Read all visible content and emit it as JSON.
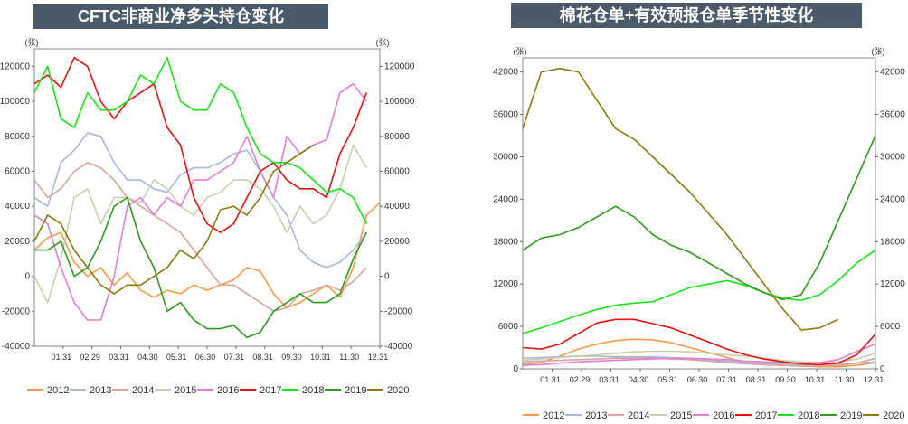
{
  "chart_data": [
    {
      "type": "line",
      "title": "CFTC非商业净多头持仓变化",
      "unit_left": "(张)",
      "unit_right": "(张)",
      "ylim": [
        -40000,
        130000
      ],
      "y_ticks": [
        "-40000",
        "-20000",
        "0",
        "20000",
        "40000",
        "60000",
        "80000",
        "100000",
        "120000"
      ],
      "x_ticks": [
        "01.31",
        "02.29",
        "03.31",
        "04.30",
        "05.31",
        "06.30",
        "07.31",
        "08.31",
        "09.30",
        "10.31",
        "11.30",
        "12.31"
      ],
      "x_start": "01.01",
      "x_end": "12.31",
      "grid": false,
      "legend_position": "bottom",
      "series": [
        {
          "name": "2012",
          "color": "#f59a4a",
          "values": [
            15000,
            22000,
            25000,
            8000,
            0,
            5000,
            -5000,
            2000,
            -8000,
            -12000,
            -8000,
            -10000,
            -5000,
            -8000,
            -5000,
            -2000,
            5000,
            3000,
            -10000,
            -18000,
            -15000,
            -10000,
            -5000,
            -12000,
            5000,
            35000,
            42000
          ]
        },
        {
          "name": "2013",
          "color": "#a9b7d9",
          "values": [
            45000,
            40000,
            65000,
            72000,
            82000,
            80000,
            65000,
            55000,
            55000,
            50000,
            48000,
            58000,
            62000,
            62000,
            65000,
            70000,
            72000,
            60000,
            45000,
            35000,
            15000,
            8000,
            5000,
            8000,
            15000,
            25000
          ]
        },
        {
          "name": "2014",
          "color": "#d9a59c",
          "values": [
            55000,
            45000,
            50000,
            60000,
            65000,
            62000,
            55000,
            45000,
            40000,
            35000,
            30000,
            25000,
            15000,
            5000,
            -5000,
            -5000,
            -10000,
            -15000,
            -20000,
            -18000,
            -10000,
            -8000,
            -5000,
            -8000,
            -3000,
            5000
          ]
        },
        {
          "name": "2015",
          "color": "#c8cfb0",
          "values": [
            0,
            -15000,
            10000,
            45000,
            50000,
            30000,
            45000,
            45000,
            42000,
            55000,
            50000,
            40000,
            35000,
            45000,
            48000,
            55000,
            55000,
            50000,
            40000,
            25000,
            40000,
            30000,
            35000,
            50000,
            75000,
            62000
          ]
        },
        {
          "name": "2016",
          "color": "#e07fd4",
          "values": [
            35000,
            30000,
            5000,
            -15000,
            -25000,
            -25000,
            0,
            40000,
            45000,
            35000,
            45000,
            40000,
            55000,
            55000,
            60000,
            65000,
            80000,
            60000,
            45000,
            80000,
            70000,
            75000,
            78000,
            105000,
            110000,
            100000
          ]
        },
        {
          "name": "2017",
          "color": "#e81010",
          "values": [
            110000,
            115000,
            108000,
            125000,
            120000,
            100000,
            90000,
            100000,
            105000,
            110000,
            85000,
            75000,
            45000,
            30000,
            25000,
            30000,
            45000,
            60000,
            65000,
            55000,
            50000,
            50000,
            45000,
            70000,
            85000,
            105000
          ]
        },
        {
          "name": "2018",
          "color": "#19e619",
          "values": [
            105000,
            120000,
            90000,
            85000,
            105000,
            95000,
            95000,
            100000,
            115000,
            110000,
            125000,
            100000,
            95000,
            95000,
            110000,
            105000,
            85000,
            70000,
            65000,
            65000,
            62000,
            55000,
            48000,
            50000,
            45000,
            30000
          ]
        },
        {
          "name": "2019",
          "color": "#2e9a1e",
          "values": [
            15000,
            15000,
            20000,
            0,
            5000,
            20000,
            40000,
            45000,
            20000,
            5000,
            -20000,
            -15000,
            -25000,
            -30000,
            -30000,
            -28000,
            -35000,
            -32000,
            -20000,
            -15000,
            -10000,
            -15000,
            -15000,
            -10000,
            10000,
            25000
          ]
        },
        {
          "name": "2020",
          "color": "#8c7a10",
          "values": [
            20000,
            35000,
            30000,
            15000,
            5000,
            -5000,
            -10000,
            -5000,
            -5000,
            0,
            5000,
            15000,
            10000,
            20000,
            38000,
            40000,
            35000,
            45000,
            60000,
            65000,
            70000,
            75000
          ]
        }
      ]
    },
    {
      "type": "line",
      "title": "棉花仓单+有效预报仓单季节性变化",
      "unit_left": "(张)",
      "unit_right": "(张)",
      "ylim": [
        0,
        44000
      ],
      "y_ticks": [
        "0",
        "6000",
        "12000",
        "18000",
        "24000",
        "30000",
        "36000",
        "42000"
      ],
      "x_ticks": [
        "01.31",
        "02.29",
        "03.31",
        "04.30",
        "05.31",
        "06.30",
        "07.31",
        "08.31",
        "09.30",
        "10.31",
        "11.30",
        "12.31"
      ],
      "x_start": "01.01",
      "x_end": "12.31",
      "grid": false,
      "legend_position": "bottom",
      "series": [
        {
          "name": "2012",
          "color": "#f59a4a",
          "values": [
            600,
            900,
            1800,
            2800,
            3500,
            4000,
            4200,
            4100,
            3700,
            3000,
            2300,
            1600,
            900,
            600,
            500,
            400,
            300,
            300,
            500,
            900
          ]
        },
        {
          "name": "2013",
          "color": "#a9b7d9",
          "values": [
            1500,
            1600,
            1700,
            1800,
            1800,
            1700,
            1700,
            1700,
            1600,
            1500,
            1300,
            1100,
            900,
            800,
            700,
            600,
            600,
            700,
            800,
            1000
          ]
        },
        {
          "name": "2014",
          "color": "#d9a59c",
          "values": [
            1000,
            1100,
            1200,
            1300,
            1400,
            1500,
            1500,
            1500,
            1400,
            1300,
            1100,
            900,
            700,
            600,
            500,
            400,
            400,
            500,
            800,
            1500
          ]
        },
        {
          "name": "2015",
          "color": "#c8cfb0",
          "values": [
            1200,
            1400,
            1600,
            1800,
            2000,
            2200,
            2400,
            2500,
            2500,
            2400,
            2200,
            2000,
            1800,
            1500,
            1200,
            1000,
            900,
            1000,
            1400,
            2200
          ]
        },
        {
          "name": "2016",
          "color": "#e07fd4",
          "values": [
            500,
            600,
            800,
            1000,
            1100,
            1200,
            1300,
            1400,
            1500,
            1500,
            1400,
            1300,
            1100,
            1000,
            900,
            800,
            900,
            1300,
            2500,
            3500
          ]
        },
        {
          "name": "2017",
          "color": "#e81010",
          "values": [
            3000,
            2800,
            3500,
            5000,
            6500,
            7000,
            7000,
            6400,
            5800,
            4800,
            3800,
            2800,
            2000,
            1400,
            1000,
            700,
            600,
            800,
            2000,
            4900
          ]
        },
        {
          "name": "2018",
          "color": "#19e619",
          "values": [
            5000,
            5800,
            6700,
            7600,
            8400,
            9000,
            9300,
            9500,
            10500,
            11500,
            12000,
            12500,
            11800,
            10800,
            10000,
            9700,
            10500,
            12500,
            15000,
            16800
          ]
        },
        {
          "name": "2019",
          "color": "#2e9a1e",
          "values": [
            16800,
            18500,
            19000,
            20000,
            21500,
            23000,
            21500,
            19000,
            17500,
            16500,
            15000,
            13500,
            12000,
            10800,
            9800,
            10500,
            15000,
            21000,
            27000,
            33000
          ]
        },
        {
          "name": "2020",
          "color": "#8c7a10",
          "values": [
            34000,
            42000,
            42500,
            42000,
            38000,
            34000,
            32500,
            30000,
            27500,
            25000,
            22000,
            19000,
            15500,
            12000,
            8500,
            5500,
            5800,
            7000
          ]
        }
      ]
    }
  ]
}
